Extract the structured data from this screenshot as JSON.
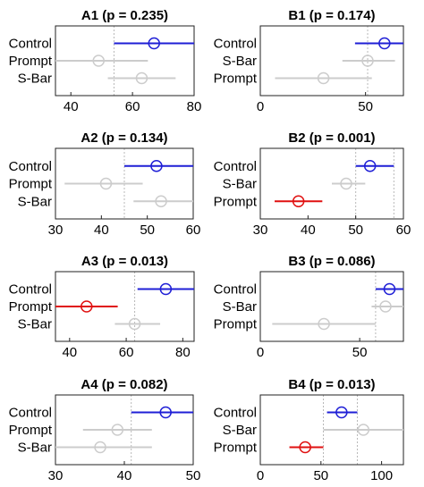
{
  "chart_data": [
    {
      "id": "A1",
      "type": "scatter",
      "title": "A1 (p = 0.235)",
      "categories": [
        "Control",
        "Prompt",
        "S-Bar"
      ],
      "xlim": [
        35,
        80
      ],
      "xticks": [
        40,
        60,
        80
      ],
      "threshold_lines": [
        54,
        80
      ],
      "series": [
        {
          "values": [
            67,
            49,
            63
          ],
          "ci_low": [
            54,
            35,
            52
          ],
          "ci_high": [
            80,
            65,
            74
          ],
          "colors": [
            "#1f1fd6",
            "#cccccc",
            "#cccccc"
          ]
        }
      ]
    },
    {
      "id": "B1",
      "type": "scatter",
      "title": "B1 (p = 0.174)",
      "categories": [
        "Control",
        "S-Bar",
        "Prompt"
      ],
      "xlim": [
        0,
        68
      ],
      "xticks": [
        0,
        50
      ],
      "threshold_lines": [
        51
      ],
      "series": [
        {
          "values": [
            59,
            51,
            30
          ],
          "ci_low": [
            45,
            39,
            7
          ],
          "ci_high": [
            68,
            64,
            53
          ],
          "colors": [
            "#1f1fd6",
            "#cccccc",
            "#cccccc"
          ]
        }
      ]
    },
    {
      "id": "A2",
      "type": "scatter",
      "title": "A2 (p = 0.134)",
      "categories": [
        "Control",
        "Prompt",
        "S-Bar"
      ],
      "xlim": [
        30,
        60
      ],
      "xticks": [
        30,
        40,
        50,
        60
      ],
      "threshold_lines": [
        45,
        60
      ],
      "series": [
        {
          "values": [
            52,
            41,
            53
          ],
          "ci_low": [
            45,
            32,
            47
          ],
          "ci_high": [
            60,
            49,
            60
          ],
          "colors": [
            "#1f1fd6",
            "#cccccc",
            "#cccccc"
          ]
        }
      ]
    },
    {
      "id": "B2",
      "type": "scatter",
      "title": "B2 (p = 0.001)",
      "categories": [
        "Control",
        "S-Bar",
        "Prompt"
      ],
      "xlim": [
        30,
        60
      ],
      "xticks": [
        30,
        40,
        50,
        60
      ],
      "threshold_lines": [
        50,
        58
      ],
      "series": [
        {
          "values": [
            53,
            48,
            38
          ],
          "ci_low": [
            50,
            45,
            33
          ],
          "ci_high": [
            58,
            52,
            43
          ],
          "colors": [
            "#1f1fd6",
            "#cccccc",
            "#e01010"
          ]
        }
      ]
    },
    {
      "id": "A3",
      "type": "scatter",
      "title": "A3 (p = 0.013)",
      "categories": [
        "Control",
        "Prompt",
        "S-Bar"
      ],
      "xlim": [
        35,
        84
      ],
      "xticks": [
        40,
        60,
        80
      ],
      "threshold_lines": [
        63
      ],
      "series": [
        {
          "values": [
            74,
            46,
            63
          ],
          "ci_low": [
            64,
            35,
            56
          ],
          "ci_high": [
            84,
            57,
            72
          ],
          "colors": [
            "#1f1fd6",
            "#e01010",
            "#cccccc"
          ]
        }
      ]
    },
    {
      "id": "B3",
      "type": "scatter",
      "title": "B3 (p = 0.086)",
      "categories": [
        "Control",
        "S-Bar",
        "Prompt"
      ],
      "xlim": [
        0,
        72
      ],
      "xticks": [
        0,
        50
      ],
      "threshold_lines": [
        58
      ],
      "series": [
        {
          "values": [
            65,
            63,
            32
          ],
          "ci_low": [
            58,
            56,
            6
          ],
          "ci_high": [
            72,
            72,
            58
          ],
          "colors": [
            "#1f1fd6",
            "#cccccc",
            "#cccccc"
          ]
        }
      ]
    },
    {
      "id": "A4",
      "type": "scatter",
      "title": "A4 (p = 0.082)",
      "categories": [
        "Control",
        "Prompt",
        "S-Bar"
      ],
      "xlim": [
        30,
        50
      ],
      "xticks": [
        30,
        40,
        50
      ],
      "threshold_lines": [
        41,
        50
      ],
      "series": [
        {
          "values": [
            46,
            39,
            36.5
          ],
          "ci_low": [
            41,
            34,
            30
          ],
          "ci_high": [
            50,
            44,
            44
          ],
          "colors": [
            "#1f1fd6",
            "#cccccc",
            "#cccccc"
          ]
        }
      ]
    },
    {
      "id": "B4",
      "type": "scatter",
      "title": "B4 (p = 0.013)",
      "categories": [
        "Control",
        "S-Bar",
        "Prompt"
      ],
      "xlim": [
        0,
        118
      ],
      "xticks": [
        0,
        50,
        100
      ],
      "threshold_lines": [
        52,
        80
      ],
      "series": [
        {
          "values": [
            67,
            85,
            37
          ],
          "ci_low": [
            55,
            52,
            24
          ],
          "ci_high": [
            80,
            118,
            52
          ],
          "colors": [
            "#1f1fd6",
            "#cccccc",
            "#e01010"
          ]
        }
      ]
    }
  ]
}
